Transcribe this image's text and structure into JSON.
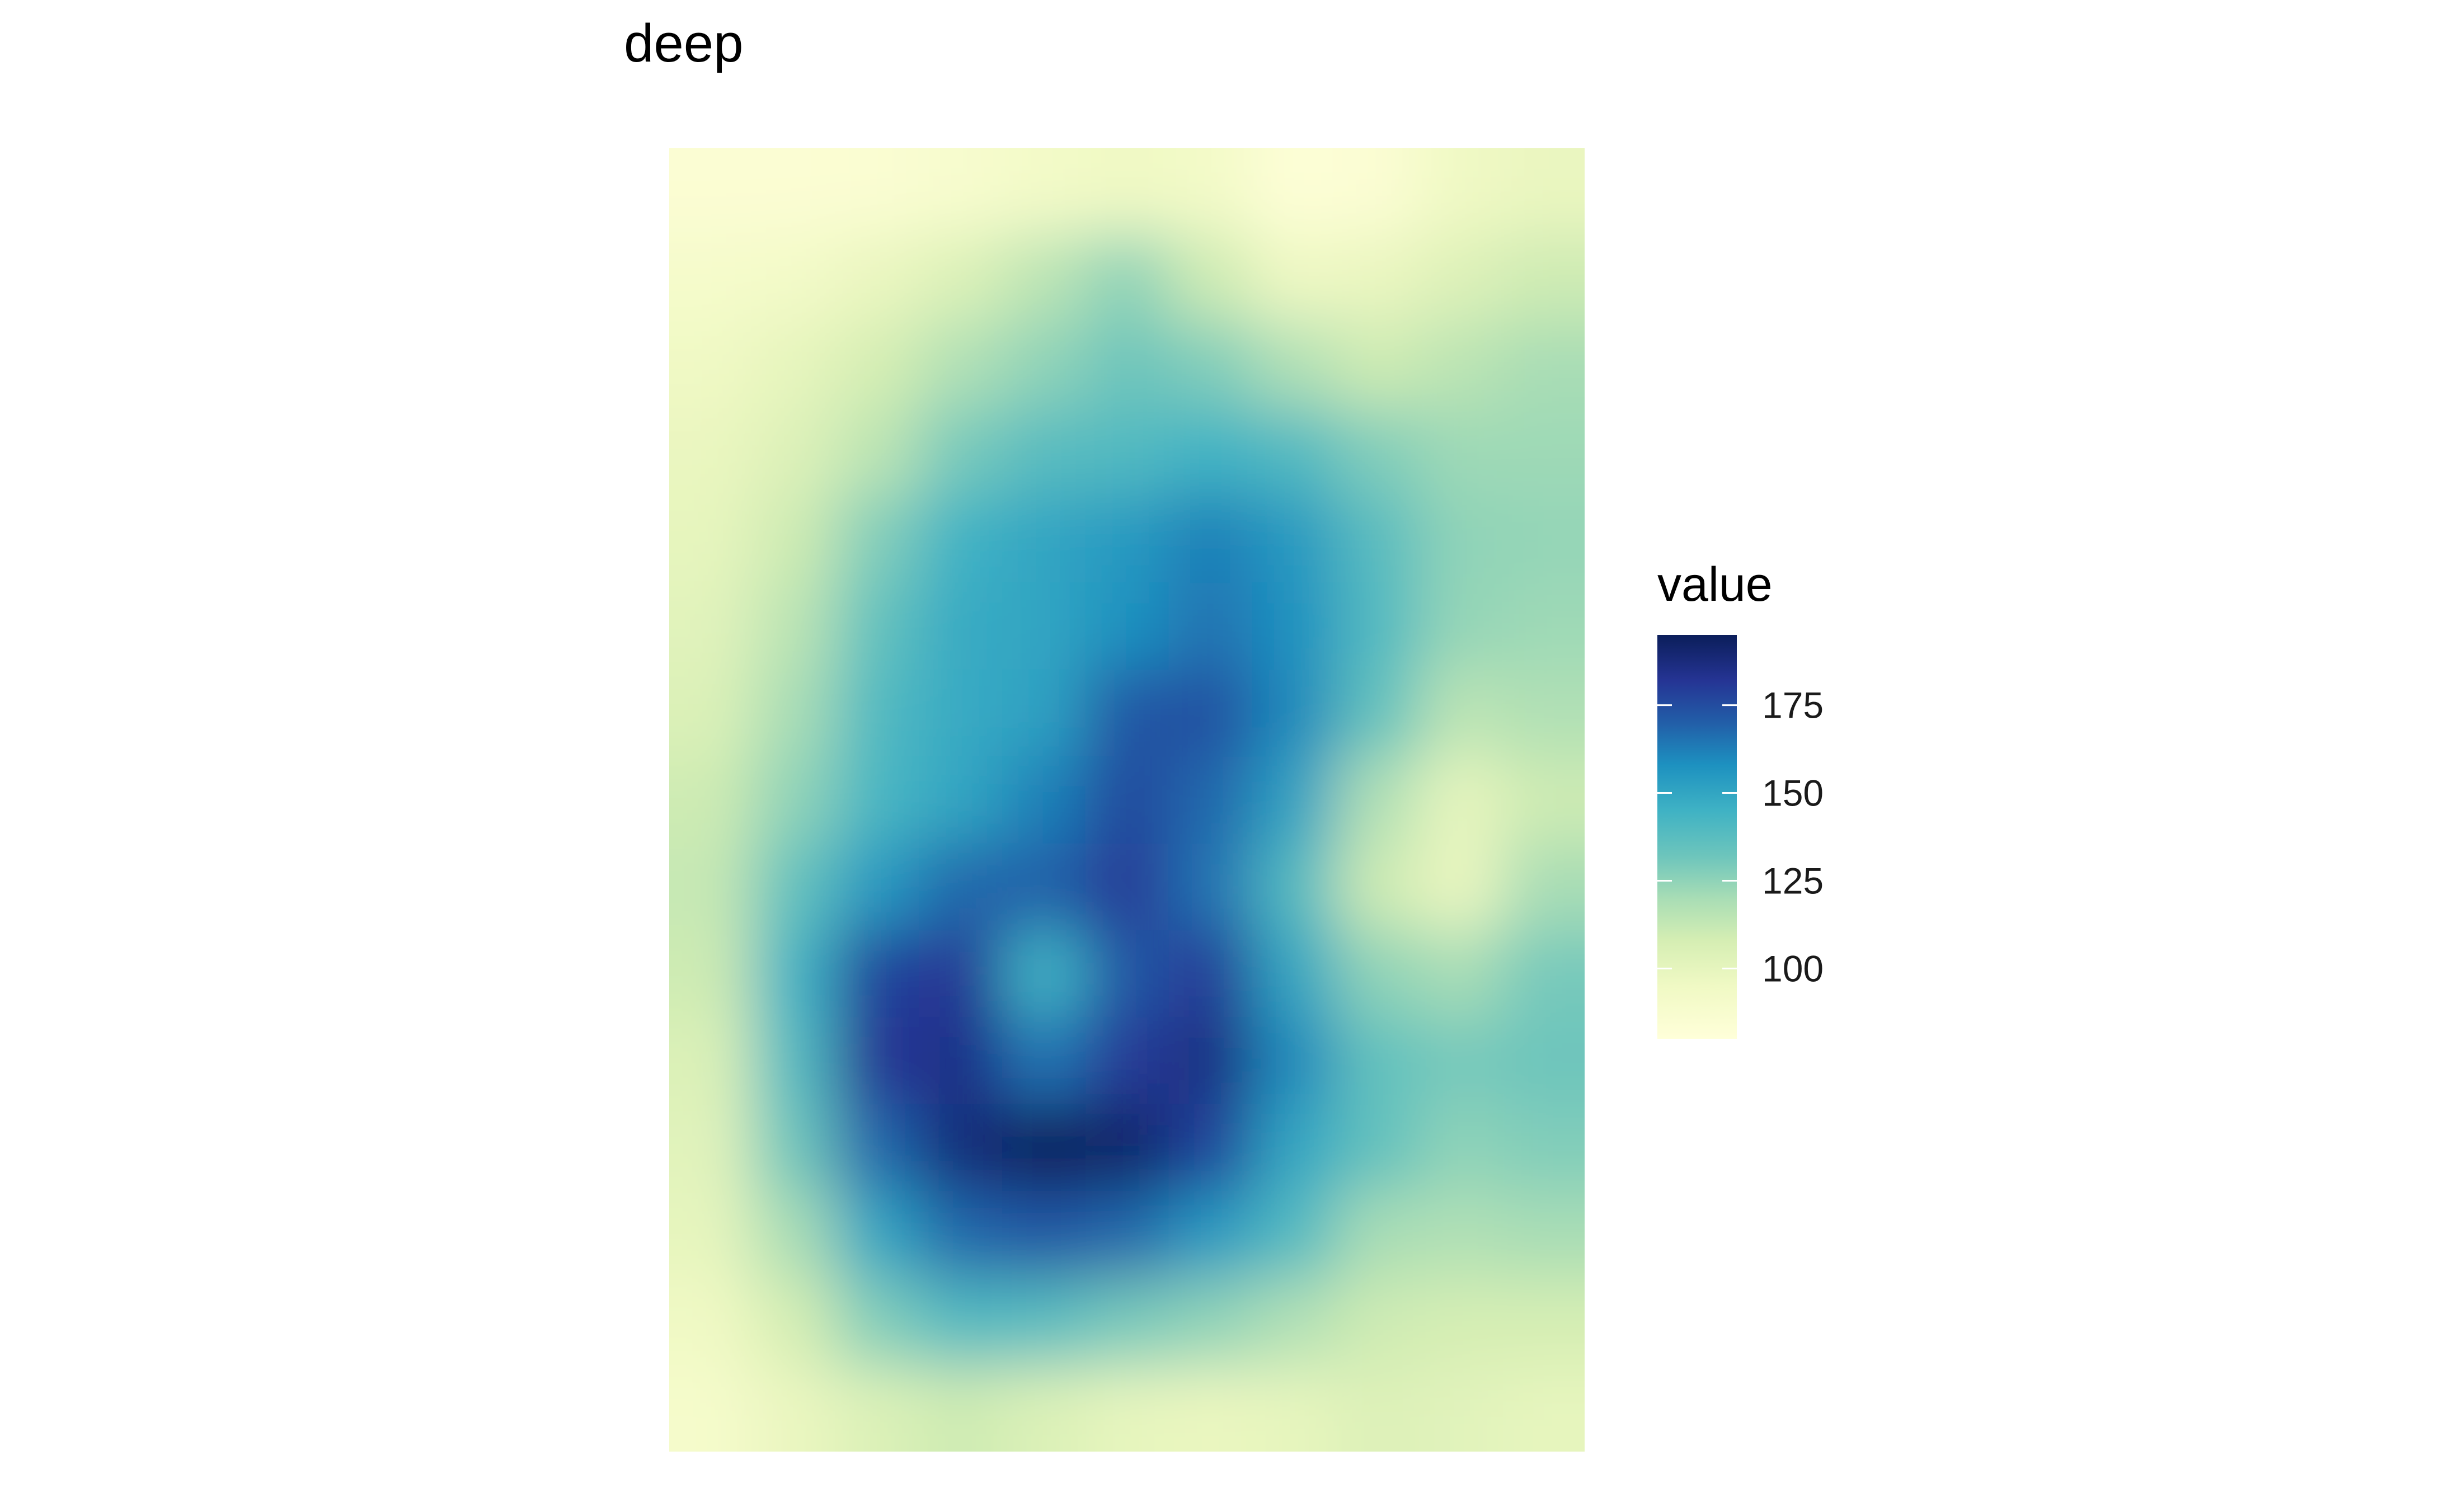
{
  "chart_data": {
    "type": "heatmap",
    "title": "deep",
    "xlabel": "",
    "ylabel": "",
    "axes_visible": false,
    "grid": false,
    "legend": {
      "title": "value",
      "placement": "right",
      "range": [
        80,
        195
      ],
      "ticks": [
        100,
        125,
        150,
        175
      ]
    },
    "colorscale": [
      {
        "value": 80,
        "color": "#ffffd9"
      },
      {
        "value": 95,
        "color": "#f0f9c4"
      },
      {
        "value": 108,
        "color": "#d5eeb3"
      },
      {
        "value": 120,
        "color": "#a8ddb5"
      },
      {
        "value": 132,
        "color": "#6dc5bc"
      },
      {
        "value": 145,
        "color": "#3fb2c4"
      },
      {
        "value": 158,
        "color": "#1d91c0"
      },
      {
        "value": 170,
        "color": "#225ea8"
      },
      {
        "value": 182,
        "color": "#253494"
      },
      {
        "value": 195,
        "color": "#0b1e5a"
      }
    ],
    "grid_size": {
      "cols": 11,
      "rows": 15
    },
    "z": [
      [
        84,
        84,
        85,
        88,
        92,
        95,
        92,
        82,
        84,
        95,
        98
      ],
      [
        90,
        92,
        98,
        105,
        115,
        125,
        110,
        96,
        98,
        104,
        110
      ],
      [
        95,
        100,
        108,
        118,
        125,
        132,
        128,
        118,
        110,
        115,
        120
      ],
      [
        98,
        104,
        115,
        130,
        138,
        140,
        145,
        140,
        128,
        122,
        122
      ],
      [
        100,
        110,
        128,
        145,
        150,
        155,
        162,
        155,
        138,
        125,
        124
      ],
      [
        102,
        115,
        135,
        148,
        150,
        158,
        165,
        158,
        140,
        124,
        122
      ],
      [
        105,
        120,
        140,
        148,
        152,
        172,
        174,
        160,
        135,
        115,
        118
      ],
      [
        110,
        125,
        142,
        150,
        162,
        176,
        168,
        152,
        118,
        100,
        110
      ],
      [
        112,
        135,
        155,
        168,
        170,
        180,
        165,
        140,
        110,
        98,
        120
      ],
      [
        110,
        145,
        178,
        182,
        145,
        172,
        180,
        150,
        125,
        120,
        130
      ],
      [
        105,
        140,
        182,
        185,
        165,
        180,
        186,
        160,
        135,
        130,
        132
      ],
      [
        102,
        132,
        168,
        188,
        195,
        192,
        178,
        150,
        135,
        125,
        128
      ],
      [
        100,
        120,
        150,
        168,
        172,
        168,
        155,
        140,
        120,
        118,
        120
      ],
      [
        95,
        108,
        128,
        140,
        138,
        130,
        125,
        118,
        110,
        108,
        108
      ],
      [
        90,
        98,
        105,
        110,
        105,
        100,
        98,
        100,
        104,
        102,
        100
      ]
    ]
  }
}
